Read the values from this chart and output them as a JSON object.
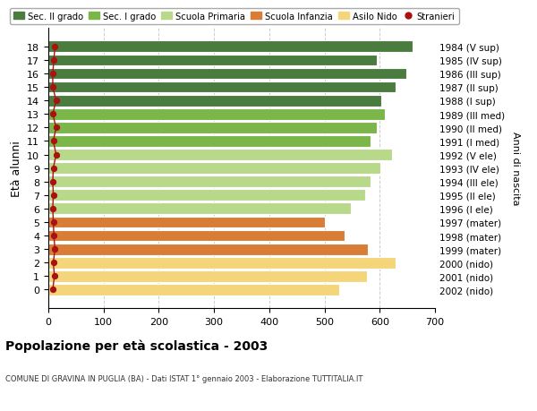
{
  "ages": [
    18,
    17,
    16,
    15,
    14,
    13,
    12,
    11,
    10,
    9,
    8,
    7,
    6,
    5,
    4,
    3,
    2,
    1,
    0
  ],
  "right_labels": [
    "1984 (V sup)",
    "1985 (IV sup)",
    "1986 (III sup)",
    "1987 (II sup)",
    "1988 (I sup)",
    "1989 (III med)",
    "1990 (II med)",
    "1991 (I med)",
    "1992 (V ele)",
    "1993 (IV ele)",
    "1994 (III ele)",
    "1995 (II ele)",
    "1996 (I ele)",
    "1997 (mater)",
    "1998 (mater)",
    "1999 (mater)",
    "2000 (nido)",
    "2001 (nido)",
    "2002 (nido)"
  ],
  "values": [
    660,
    595,
    648,
    628,
    603,
    610,
    595,
    583,
    622,
    601,
    583,
    573,
    547,
    500,
    537,
    578,
    628,
    577,
    527
  ],
  "stranieri": [
    12,
    10,
    8,
    8,
    14,
    8,
    14,
    9,
    14,
    9,
    8,
    9,
    8,
    9,
    10,
    12,
    9,
    11,
    8
  ],
  "bar_colors": [
    "#4a7c3f",
    "#4a7c3f",
    "#4a7c3f",
    "#4a7c3f",
    "#4a7c3f",
    "#7ab648",
    "#7ab648",
    "#7ab648",
    "#b8d98a",
    "#b8d98a",
    "#b8d98a",
    "#b8d98a",
    "#b8d98a",
    "#d97c35",
    "#d97c35",
    "#d97c35",
    "#f5d57a",
    "#f5d57a",
    "#f5d57a"
  ],
  "legend_items": [
    {
      "label": "Sec. II grado",
      "color": "#4a7c3f"
    },
    {
      "label": "Sec. I grado",
      "color": "#7ab648"
    },
    {
      "label": "Scuola Primaria",
      "color": "#b8d98a"
    },
    {
      "label": "Scuola Infanzia",
      "color": "#d97c35"
    },
    {
      "label": "Asilo Nido",
      "color": "#f5d57a"
    },
    {
      "label": "Stranieri",
      "color": "#aa1111"
    }
  ],
  "ylabel": "Età alunni",
  "right_ylabel": "Anni di nascita",
  "title": "Popolazione per età scolastica - 2003",
  "subtitle": "COMUNE DI GRAVINA IN PUGLIA (BA) - Dati ISTAT 1° gennaio 2003 - Elaborazione TUTTITALIA.IT",
  "xlim": [
    0,
    700
  ],
  "xticks": [
    0,
    100,
    200,
    300,
    400,
    500,
    600,
    700
  ],
  "background_color": "#ffffff",
  "bar_edge_color": "#ffffff",
  "stranieri_color": "#aa1111",
  "grid_color": "#cccccc"
}
